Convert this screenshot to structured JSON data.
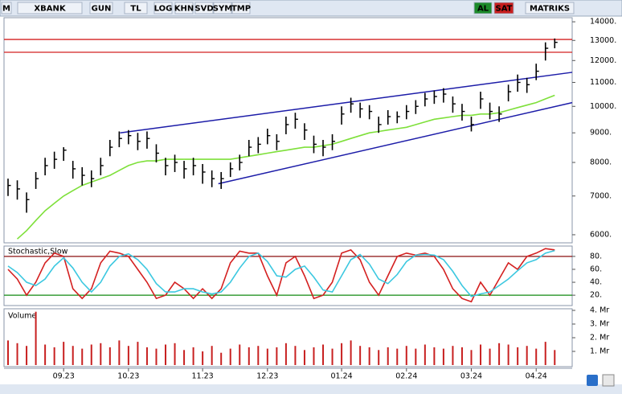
{
  "toolbar": {
    "items": [
      "M",
      "XBANK",
      "GUN",
      "TL",
      "LOG",
      "KHN",
      "SVD",
      "SYM",
      "TMP",
      "AL",
      "SAT",
      "MATRIKS"
    ]
  },
  "chart_data": [
    {
      "type": "hlc",
      "yscale": "log",
      "high": [
        7500,
        7450,
        7100,
        7700,
        8150,
        8350,
        8500,
        8050,
        7850,
        7750,
        8150,
        8750,
        9050,
        9100,
        9000,
        9050,
        8600,
        8150,
        8250,
        8050,
        8150,
        7950,
        7750,
        7700,
        8000,
        8250,
        8750,
        8850,
        9150,
        8950,
        9600,
        9750,
        9350,
        8900,
        8750,
        8950,
        10000,
        10350,
        10150,
        10050,
        9600,
        9850,
        9800,
        10050,
        10250,
        10550,
        10650,
        10750,
        10400,
        10100,
        9600,
        10600,
        10150,
        10000,
        10900,
        11350,
        11200,
        11850,
        12900,
        13100
      ],
      "low": [
        7000,
        6900,
        6550,
        7200,
        7600,
        7800,
        8050,
        7500,
        7300,
        7250,
        7600,
        8200,
        8500,
        8600,
        8400,
        8450,
        8000,
        7600,
        7700,
        7500,
        7600,
        7350,
        7250,
        7200,
        7550,
        7750,
        8200,
        8300,
        8600,
        8400,
        8950,
        9150,
        8750,
        8300,
        8200,
        8400,
        9300,
        9750,
        9550,
        9500,
        9000,
        9300,
        9350,
        9500,
        9700,
        10000,
        10100,
        10150,
        9750,
        9450,
        9050,
        9900,
        9500,
        9400,
        10200,
        10600,
        10550,
        11100,
        12000,
        12600
      ],
      "close": [
        7300,
        7200,
        6900,
        7500,
        7900,
        8100,
        8400,
        7800,
        7600,
        7500,
        7900,
        8500,
        8800,
        8900,
        8700,
        8800,
        8300,
        7900,
        8000,
        7800,
        7900,
        7700,
        7500,
        7500,
        7800,
        8000,
        8500,
        8600,
        8900,
        8700,
        9300,
        9500,
        9100,
        8600,
        8500,
        8700,
        9700,
        10100,
        9900,
        9800,
        9300,
        9600,
        9600,
        9800,
        10000,
        10300,
        10400,
        10500,
        10100,
        9800,
        9300,
        10300,
        9800,
        9700,
        10600,
        11000,
        10900,
        11500,
        12600,
        12900
      ],
      "color": "#000000",
      "ma": {
        "color": "#7ee03a",
        "values": [
          null,
          5900,
          6100,
          6350,
          6600,
          6800,
          7000,
          7150,
          7300,
          7400,
          7500,
          7600,
          7750,
          7900,
          8000,
          8050,
          8050,
          8100,
          8100,
          8100,
          8100,
          8100,
          8100,
          8100,
          8100,
          8150,
          8200,
          8250,
          8300,
          8350,
          8400,
          8450,
          8500,
          8500,
          8550,
          8600,
          8700,
          8800,
          8900,
          9000,
          9050,
          9100,
          9150,
          9200,
          9300,
          9400,
          9500,
          9550,
          9600,
          9650,
          9650,
          9700,
          9700,
          9750,
          9850,
          9950,
          10050,
          10150,
          10300,
          10450
        ]
      },
      "hlines": [
        {
          "value": 13050,
          "color": "#d42020"
        },
        {
          "value": 12400,
          "color": "#d42020"
        }
      ],
      "trendlines": [
        {
          "color": "#1c1ca8",
          "x": [
            12.1,
            60.9
          ],
          "y": [
            9000,
            11450
          ]
        },
        {
          "color": "#1c1ca8",
          "x": [
            22.7,
            60.9
          ],
          "y": [
            7350,
            10150
          ]
        }
      ],
      "ylim": [
        5810,
        14230
      ],
      "yticks": [
        {
          "value": 14000,
          "label": "14000."
        },
        {
          "value": 13000,
          "label": "13000."
        },
        {
          "value": 12000,
          "label": "12000."
        },
        {
          "value": 11000,
          "label": "11000."
        },
        {
          "value": 10000,
          "label": "10000."
        },
        {
          "value": 9000,
          "label": "9000."
        },
        {
          "value": 8000,
          "label": "8000."
        },
        {
          "value": 7000,
          "label": "7000."
        },
        {
          "value": 6000,
          "label": "6000."
        }
      ]
    },
    {
      "type": "line",
      "title": "Stochastic,Slow",
      "series": [
        {
          "color": "#d42020",
          "values": [
            60,
            45,
            20,
            40,
            70,
            85,
            80,
            30,
            15,
            30,
            70,
            88,
            85,
            80,
            60,
            40,
            15,
            20,
            40,
            30,
            15,
            30,
            15,
            30,
            70,
            88,
            85,
            85,
            50,
            20,
            70,
            80,
            50,
            15,
            20,
            40,
            85,
            90,
            75,
            40,
            20,
            50,
            80,
            85,
            82,
            85,
            80,
            60,
            30,
            15,
            10,
            40,
            20,
            45,
            70,
            60,
            80,
            85,
            92,
            90
          ]
        },
        {
          "color": "#3cc8e0",
          "values": [
            65,
            55,
            40,
            35,
            45,
            65,
            78,
            62,
            40,
            25,
            40,
            65,
            80,
            84,
            75,
            60,
            38,
            25,
            25,
            30,
            30,
            25,
            22,
            25,
            40,
            62,
            80,
            85,
            72,
            50,
            48,
            60,
            65,
            48,
            28,
            25,
            50,
            75,
            83,
            68,
            45,
            38,
            52,
            72,
            82,
            83,
            82,
            75,
            57,
            35,
            18,
            22,
            25,
            35,
            45,
            58,
            70,
            75,
            85,
            89
          ]
        }
      ],
      "hlines": [
        {
          "value": 80,
          "color": "#8b1010"
        },
        {
          "value": 20,
          "color": "#108a10"
        }
      ],
      "ylim": [
        4,
        96
      ],
      "yticks": [
        {
          "value": 80,
          "label": "80."
        },
        {
          "value": 60,
          "label": "60."
        },
        {
          "value": 40,
          "label": "40."
        },
        {
          "value": 20,
          "label": "20."
        }
      ]
    },
    {
      "type": "bar",
      "title": "Volume",
      "color": "#c82020",
      "categories": [
        null,
        null,
        null,
        null,
        null,
        null,
        "09.23",
        null,
        null,
        null,
        null,
        null,
        null,
        "10.23",
        null,
        null,
        null,
        null,
        null,
        null,
        null,
        "11.23",
        null,
        null,
        null,
        null,
        null,
        null,
        "12.23",
        null,
        null,
        null,
        null,
        null,
        null,
        null,
        "01.24",
        null,
        null,
        null,
        null,
        null,
        null,
        "02.24",
        null,
        null,
        null,
        null,
        null,
        null,
        "03.24",
        null,
        null,
        null,
        null,
        null,
        null,
        "04.24",
        null,
        null
      ],
      "values": [
        1800000,
        1600000,
        1400000,
        3900000,
        1500000,
        1300000,
        1700000,
        1400000,
        1200000,
        1500000,
        1600000,
        1300000,
        1800000,
        1400000,
        1700000,
        1300000,
        1200000,
        1500000,
        1600000,
        1100000,
        1300000,
        1000000,
        1400000,
        900000,
        1200000,
        1500000,
        1300000,
        1400000,
        1200000,
        1300000,
        1600000,
        1400000,
        1100000,
        1300000,
        1500000,
        1200000,
        1600000,
        1800000,
        1400000,
        1300000,
        1100000,
        1300000,
        1200000,
        1400000,
        1200000,
        1500000,
        1300000,
        1200000,
        1400000,
        1300000,
        1100000,
        1500000,
        1200000,
        1600000,
        1500000,
        1300000,
        1400000,
        1200000,
        1700000,
        1100000
      ],
      "ylim": [
        0,
        4000000
      ],
      "yticks": [
        {
          "value": 4000000,
          "label": "4. Mr"
        },
        {
          "value": 3000000,
          "label": "3. Mr"
        },
        {
          "value": 2000000,
          "label": "2. Mr"
        },
        {
          "value": 1000000,
          "label": "1. Mr"
        }
      ]
    }
  ]
}
